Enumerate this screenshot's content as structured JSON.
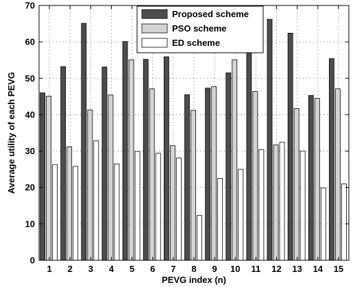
{
  "chart_data": {
    "type": "bar",
    "title": "",
    "xlabel": "PEVG index (n)",
    "ylabel": "Average utility of each PEVG",
    "categories": [
      "1",
      "2",
      "3",
      "4",
      "5",
      "6",
      "7",
      "8",
      "9",
      "10",
      "11",
      "12",
      "13",
      "14",
      "15"
    ],
    "ylim": [
      0,
      70
    ],
    "yticks": [
      0,
      10,
      20,
      30,
      40,
      50,
      60,
      70
    ],
    "grid": true,
    "legend_position": "top-center",
    "series": [
      {
        "name": "Proposed scheme",
        "color": "#4d4d4d",
        "values": [
          46.0,
          53.2,
          65.1,
          53.1,
          60.1,
          55.2,
          55.9,
          45.5,
          47.3,
          51.5,
          57.5,
          66.2,
          62.4,
          45.3,
          55.4
        ]
      },
      {
        "name": "PSO scheme",
        "color": "#d4d4d4",
        "values": [
          45.1,
          31.2,
          41.3,
          45.4,
          55.1,
          47.1,
          31.5,
          41.2,
          47.7,
          55.1,
          46.4,
          31.7,
          41.7,
          44.5,
          47.1
        ]
      },
      {
        "name": "ED scheme",
        "color": "#ffffff",
        "values": [
          26.3,
          25.8,
          32.8,
          26.5,
          29.9,
          29.4,
          28.1,
          12.3,
          22.5,
          25.0,
          30.4,
          32.4,
          30.0,
          19.9,
          21.0
        ]
      }
    ]
  }
}
